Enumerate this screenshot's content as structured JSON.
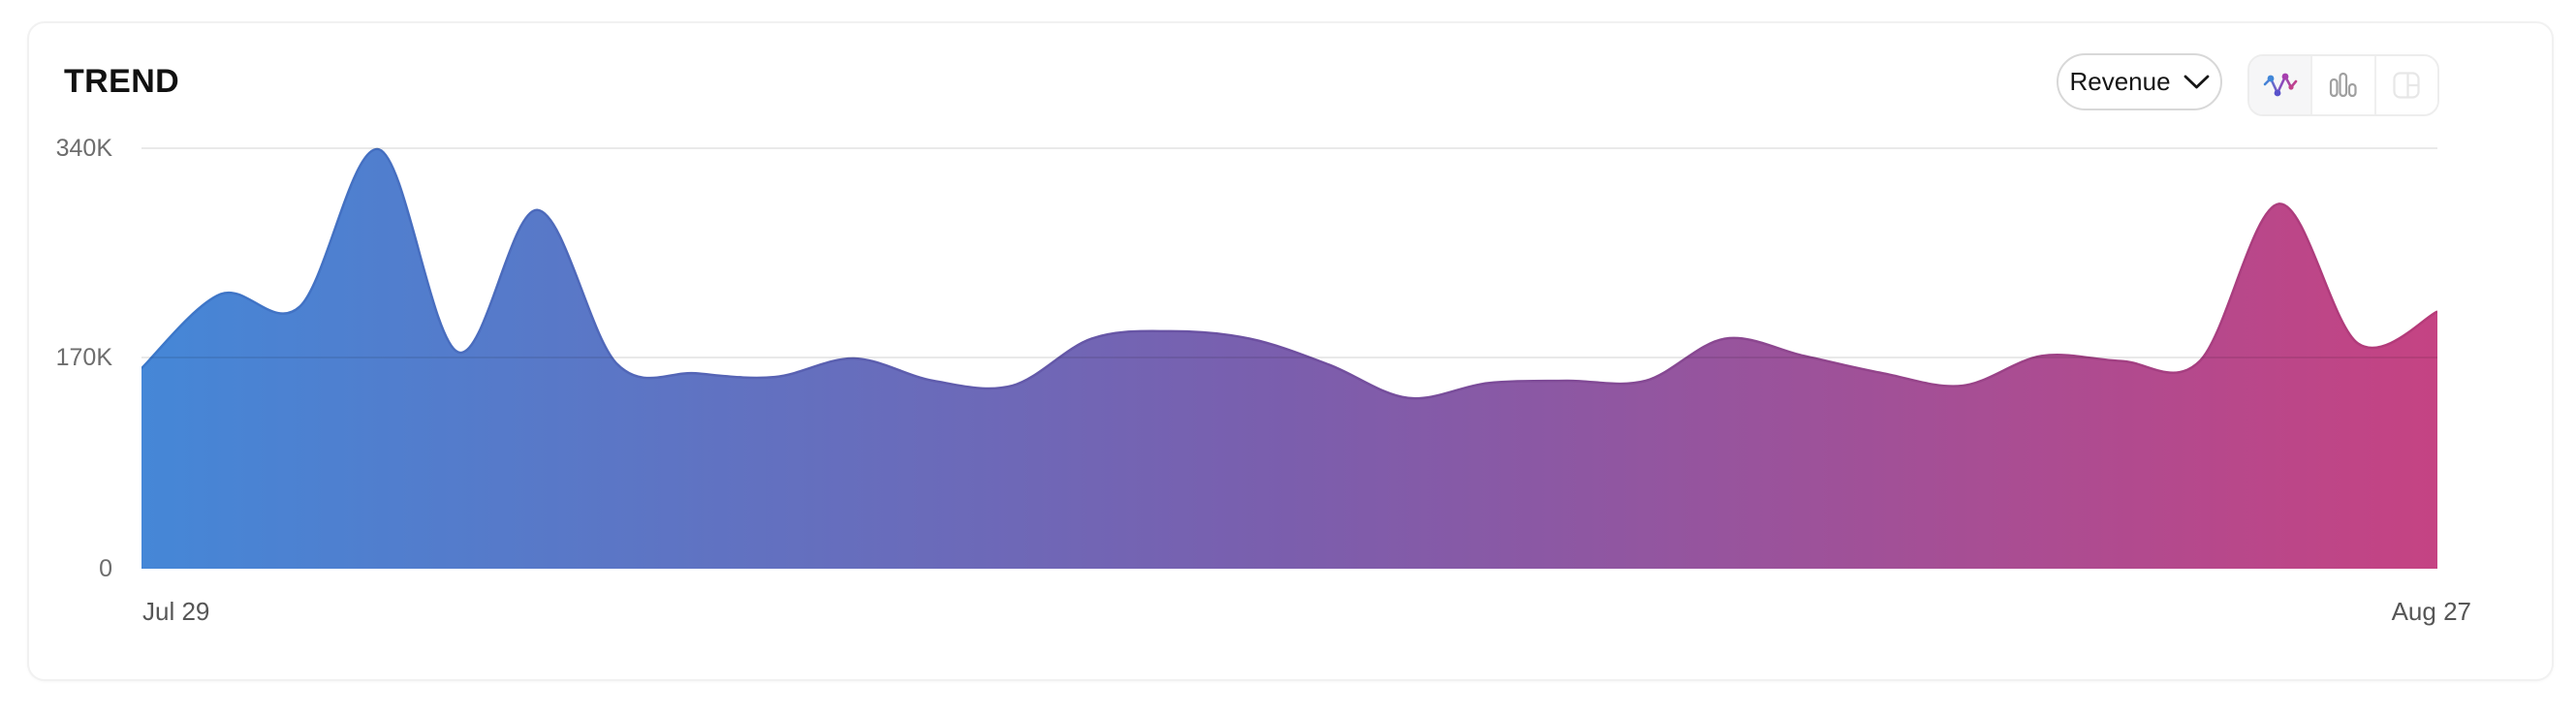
{
  "card": {
    "title": "TREND",
    "metric_dropdown": {
      "label": "Revenue",
      "icon": "chevron-down-icon"
    },
    "chart_type_switcher": {
      "options": [
        {
          "name": "line-chart",
          "icon": "line-chart-icon",
          "active": true
        },
        {
          "name": "bar-chart",
          "icon": "bar-chart-icon",
          "active": false
        },
        {
          "name": "table",
          "icon": "table-icon",
          "active": false
        }
      ]
    }
  },
  "chart_data": {
    "type": "area",
    "title": "TREND",
    "series": [
      {
        "name": "Revenue",
        "unit": "K",
        "values": [
          162,
          222,
          212,
          339,
          175,
          290,
          166,
          158,
          155,
          170,
          152,
          148,
          186,
          192,
          186,
          165,
          138,
          150,
          152,
          152,
          186,
          172,
          158,
          148,
          172,
          168,
          168,
          295,
          182,
          208
        ]
      }
    ],
    "x_axis": {
      "start_label": "Jul 29",
      "end_label": "Aug 27",
      "points": 30
    },
    "y_axis": {
      "max": 340,
      "unit": "K",
      "tick_labels": [
        "340K",
        "170K",
        "0"
      ]
    },
    "grid": true,
    "legend": false,
    "smooth": true,
    "colors": {
      "area_gradient": [
        "#4587d7",
        "#7b5ead",
        "#c54383"
      ],
      "line_gradient": [
        "#3b78ca",
        "#6f50a0",
        "#b63a78"
      ]
    }
  }
}
